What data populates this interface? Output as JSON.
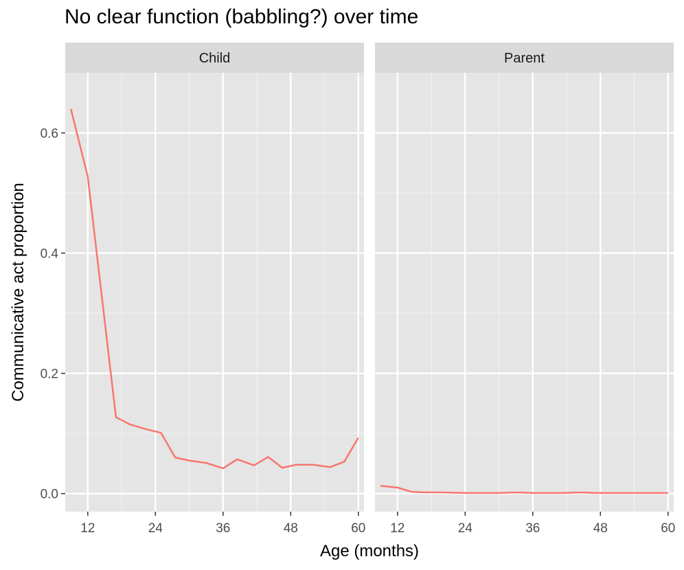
{
  "chart_data": {
    "type": "line",
    "title": "No clear function (babbling?) over time",
    "xlabel": "Age (months)",
    "ylabel": "Communicative act proportion",
    "xlim": [
      8,
      61
    ],
    "ylim": [
      -0.03,
      0.7
    ],
    "x_ticks": [
      12,
      24,
      36,
      48,
      60
    ],
    "y_ticks": [
      0.0,
      0.2,
      0.4,
      0.6
    ],
    "y_tick_labels": [
      "0.0",
      "0.2",
      "0.4",
      "0.6"
    ],
    "x_tick_labels": [
      "12",
      "24",
      "36",
      "48",
      "60"
    ],
    "grid": true,
    "line_color": "#F8766D",
    "panel_background": "#E5E5E5",
    "strip_background": "#D9D9D9",
    "facets": [
      {
        "label": "Child",
        "x": [
          9,
          12,
          17,
          19.5,
          22,
          25,
          27.5,
          30,
          33,
          36,
          38.5,
          41.5,
          44,
          46.5,
          49,
          52,
          55,
          57.5,
          60
        ],
        "y": [
          0.64,
          0.527,
          0.127,
          0.115,
          0.108,
          0.101,
          0.06,
          0.055,
          0.051,
          0.042,
          0.057,
          0.047,
          0.061,
          0.043,
          0.048,
          0.048,
          0.044,
          0.053,
          0.093
        ]
      },
      {
        "label": "Parent",
        "x": [
          9,
          12,
          14.5,
          17,
          20,
          24,
          27,
          30,
          33,
          36,
          38.5,
          41.5,
          44.5,
          47,
          50,
          53,
          56,
          60
        ],
        "y": [
          0.013,
          0.01,
          0.003,
          0.002,
          0.002,
          0.001,
          0.001,
          0.001,
          0.002,
          0.001,
          0.001,
          0.001,
          0.002,
          0.001,
          0.001,
          0.001,
          0.001,
          0.001
        ]
      }
    ]
  }
}
